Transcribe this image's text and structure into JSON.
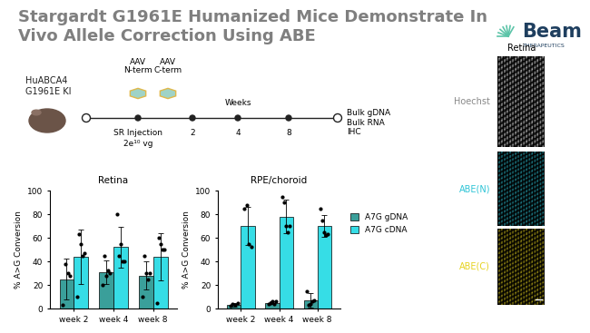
{
  "title": "Stargardt G1961E Humanized Mice Demonstrate In\nVivo Allele Correction Using ABE",
  "logo": {
    "name": "Beam",
    "subtitle": "THERAPEUTICS"
  },
  "timeline": {
    "subject": "HuABCA4\nG1961E KI",
    "vectors": [
      "AAV\nN-term",
      "AAV\nC-term"
    ],
    "injection": "SR Injection",
    "dose": "2e¹⁰ vg",
    "axis_label": "Weeks",
    "weeks": [
      2,
      4,
      8
    ],
    "readouts": "Bulk gDNA\nBulk RNA\nIHC"
  },
  "images": {
    "title": "Retina",
    "panels": [
      {
        "label": "Hoechst",
        "color": "#ffffff"
      },
      {
        "label": "ABE(N)",
        "color": "#2ec4d6"
      },
      {
        "label": "ABE(C)",
        "color": "#e6d21e"
      }
    ]
  },
  "chart_data": [
    {
      "type": "bar",
      "title": "Retina",
      "y_label": "% A>G Conversion",
      "categories": [
        "week 2",
        "week 4",
        "week 8"
      ],
      "ylim": [
        0,
        100
      ],
      "yticks": [
        0,
        20,
        40,
        60,
        80,
        100
      ],
      "series": [
        {
          "name": "A7G gDNA",
          "color": "#3a9f9a",
          "values": [
            25,
            31,
            28
          ],
          "error": [
            17,
            10,
            12
          ],
          "points": [
            [
              3,
              38,
              30,
              28
            ],
            [
              20,
              45,
              28,
              32,
              30
            ],
            [
              10,
              45,
              30,
              25,
              30
            ]
          ]
        },
        {
          "name": "A7G cDNA",
          "color": "#36dde6",
          "values": [
            44,
            52,
            44
          ],
          "error": [
            23,
            17,
            20
          ],
          "points": [
            [
              10,
              63,
              55,
              45,
              47
            ],
            [
              80,
              45,
              55,
              40,
              40
            ],
            [
              5,
              60,
              55,
              50,
              50
            ]
          ]
        }
      ]
    },
    {
      "type": "bar",
      "title": "RPE/choroid",
      "y_label": "% A>G Conversion",
      "categories": [
        "week 2",
        "week 4",
        "week 8"
      ],
      "ylim": [
        0,
        100
      ],
      "yticks": [
        0,
        20,
        40,
        60,
        80,
        100
      ],
      "legend": "center left",
      "series": [
        {
          "name": "A7G gDNA",
          "color": "#3a9f9a",
          "values": [
            3,
            5,
            7
          ],
          "error": [
            1.5,
            1.5,
            6
          ],
          "points": [
            [
              2,
              4,
              3,
              5
            ],
            [
              4,
              5,
              6,
              4,
              6
            ],
            [
              15,
              3,
              4,
              6,
              7
            ]
          ]
        },
        {
          "name": "A7G cDNA",
          "color": "#36dde6",
          "values": [
            70,
            78,
            70
          ],
          "error": [
            16,
            14,
            9
          ],
          "points": [
            [
              85,
              88,
              55,
              52
            ],
            [
              95,
              90,
              70,
              65,
              70
            ],
            [
              85,
              75,
              65,
              62,
              63
            ]
          ]
        }
      ]
    }
  ]
}
